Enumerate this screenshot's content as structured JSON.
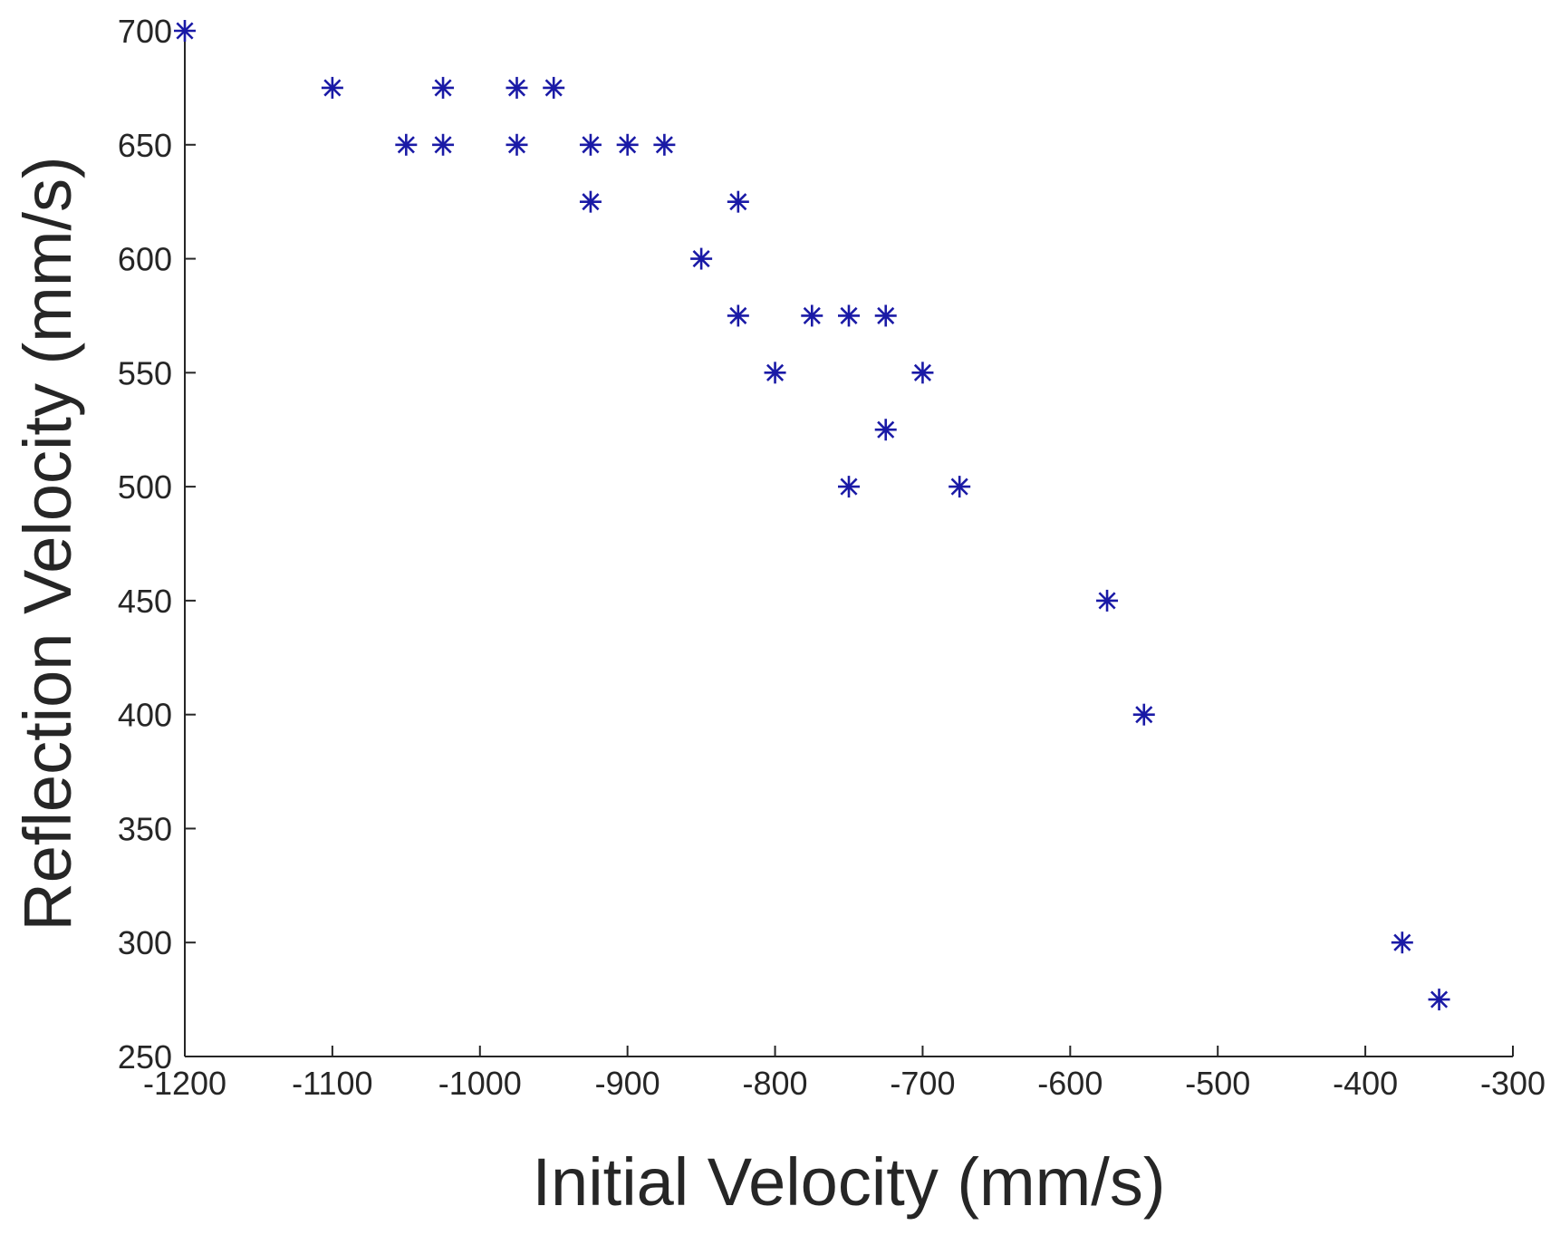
{
  "chart_data": {
    "type": "scatter",
    "title": "",
    "xlabel": "Initial Velocity (mm/s)",
    "ylabel": "Reflection Velocity (mm/s)",
    "xlim": [
      -1200,
      -300
    ],
    "ylim": [
      250,
      700
    ],
    "xticks": [
      -1200,
      -1100,
      -1000,
      -900,
      -800,
      -700,
      -600,
      -500,
      -400,
      -300
    ],
    "yticks": [
      250,
      300,
      350,
      400,
      450,
      500,
      550,
      600,
      650,
      700
    ],
    "grid": false,
    "legend": "none",
    "marker": "asterisk",
    "marker_color": "#1a1aa6",
    "axis_color": "#262626",
    "series": [
      {
        "points": [
          {
            "x": -1200,
            "y": 700
          },
          {
            "x": -1100,
            "y": 675
          },
          {
            "x": -1025,
            "y": 675
          },
          {
            "x": -975,
            "y": 675
          },
          {
            "x": -950,
            "y": 675
          },
          {
            "x": -1050,
            "y": 650
          },
          {
            "x": -1025,
            "y": 650
          },
          {
            "x": -975,
            "y": 650
          },
          {
            "x": -925,
            "y": 650
          },
          {
            "x": -900,
            "y": 650
          },
          {
            "x": -875,
            "y": 650
          },
          {
            "x": -925,
            "y": 625
          },
          {
            "x": -825,
            "y": 625
          },
          {
            "x": -850,
            "y": 600
          },
          {
            "x": -825,
            "y": 575
          },
          {
            "x": -775,
            "y": 575
          },
          {
            "x": -750,
            "y": 575
          },
          {
            "x": -725,
            "y": 575
          },
          {
            "x": -800,
            "y": 550
          },
          {
            "x": -700,
            "y": 550
          },
          {
            "x": -725,
            "y": 525
          },
          {
            "x": -750,
            "y": 500
          },
          {
            "x": -675,
            "y": 500
          },
          {
            "x": -575,
            "y": 450
          },
          {
            "x": -550,
            "y": 400
          },
          {
            "x": -375,
            "y": 300
          },
          {
            "x": -350,
            "y": 275
          }
        ]
      }
    ]
  }
}
